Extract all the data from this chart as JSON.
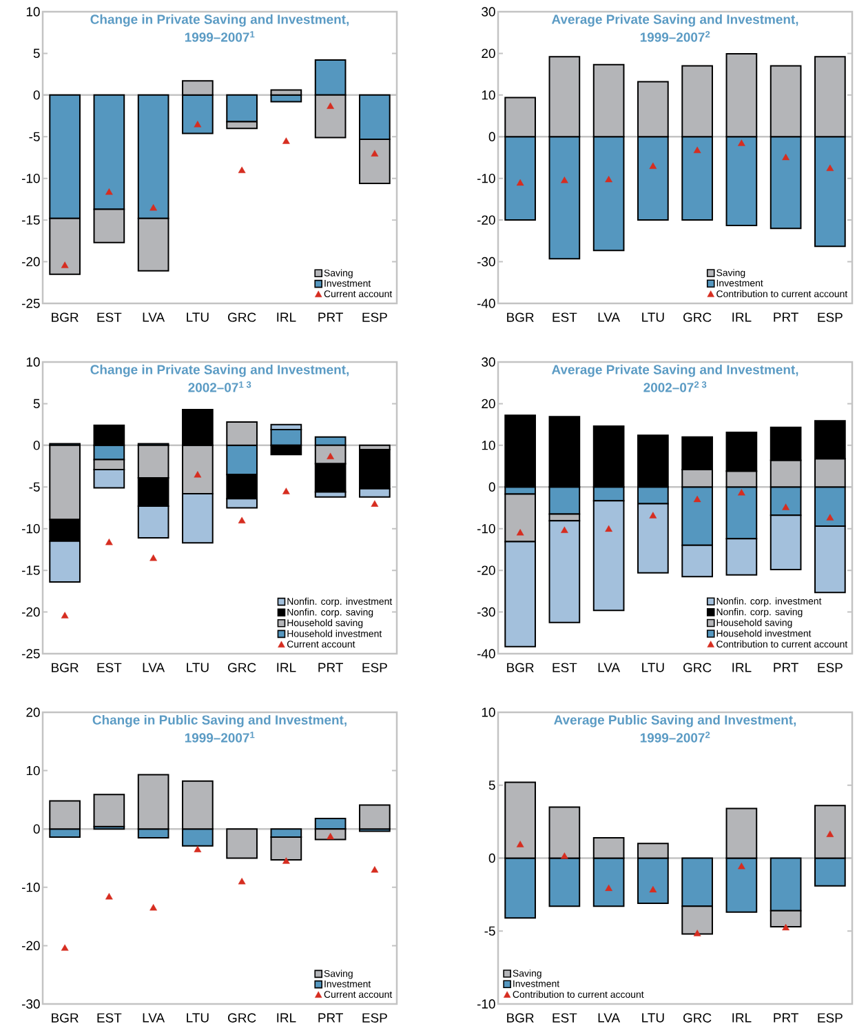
{
  "chart_data": [
    {
      "type": "bar",
      "title": "Change in Private Saving and Investment,",
      "subtitle": "1999–2007$^{1}$",
      "categories": [
        "BGR",
        "EST",
        "LVA",
        "LTU",
        "GRC",
        "IRL",
        "PRT",
        "ESP"
      ],
      "stacked": true,
      "ylim": [
        -25,
        10
      ],
      "yticks": [
        -25,
        -20,
        -15,
        -10,
        -5,
        0,
        5,
        10
      ],
      "legend": "bottom right",
      "series": [
        {
          "name": "Investment",
          "color": "#5597bf",
          "values": [
            -14.8,
            -13.7,
            -14.8,
            -4.6,
            -3.2,
            -0.8,
            4.2,
            -5.3
          ]
        },
        {
          "name": "Saving",
          "color": "#b4b5b8",
          "values": [
            -6.7,
            -4.0,
            -6.3,
            1.7,
            -0.8,
            0.6,
            -5.1,
            -5.3
          ]
        },
        {
          "name": "Current account",
          "type": "scatter",
          "marker": "triangle",
          "color": "#d62d20",
          "values": [
            -20.5,
            -11.7,
            -13.6,
            -3.6,
            -9.1,
            -5.6,
            -1.4,
            -7.1
          ]
        }
      ]
    },
    {
      "type": "bar",
      "title": "Average Private Saving and Investment,",
      "subtitle": "1999–2007$^{2}$",
      "categories": [
        "BGR",
        "EST",
        "LVA",
        "LTU",
        "GRC",
        "IRL",
        "PRT",
        "ESP"
      ],
      "stacked": true,
      "ylim": [
        -40,
        30
      ],
      "yticks": [
        -40,
        -30,
        -20,
        -10,
        0,
        10,
        20,
        30
      ],
      "legend": "bottom right",
      "series": [
        {
          "name": "Investment",
          "color": "#5597bf",
          "values": [
            -20.0,
            -29.3,
            -27.3,
            -20.0,
            -20.0,
            -21.3,
            -22.0,
            -26.3
          ]
        },
        {
          "name": "Saving",
          "color": "#b4b5b8",
          "values": [
            9.4,
            19.2,
            17.3,
            13.2,
            17.0,
            19.9,
            17.0,
            19.2
          ]
        },
        {
          "name": "Contribution to current account",
          "type": "scatter",
          "marker": "triangle",
          "color": "#d62d20",
          "values": [
            -11.2,
            -10.6,
            -10.4,
            -7.2,
            -3.4,
            -1.7,
            -5.1,
            -7.7
          ]
        }
      ]
    },
    {
      "type": "bar",
      "title": "Change in Private Saving and Investment,",
      "subtitle": "2002–07$^{1 3}$",
      "categories": [
        "BGR",
        "EST",
        "LVA",
        "LTU",
        "GRC",
        "IRL",
        "PRT",
        "ESP"
      ],
      "stacked": true,
      "ylim": [
        -25,
        10
      ],
      "yticks": [
        -25,
        -20,
        -15,
        -10,
        -5,
        0,
        5,
        10
      ],
      "legend": "bottom right",
      "series": [
        {
          "name": "Household investment",
          "color": "#5597bf",
          "values": [
            0.2,
            -1.7,
            0.2,
            0,
            -3.5,
            1.9,
            1.0,
            null
          ]
        },
        {
          "name": "Household saving",
          "color": "#b4b5b8",
          "values": [
            -8.9,
            -1.2,
            -3.9,
            -5.8,
            2.8,
            0,
            -2.2,
            -0.5
          ]
        },
        {
          "name": "Nonfin. corp. saving",
          "color": "#000000",
          "values": [
            -2.6,
            2.4,
            -3.4,
            4.3,
            -2.9,
            -1.1,
            -3.4,
            -4.7
          ]
        },
        {
          "name": "Nonfin. corp. investment",
          "color": "#a3c0dc",
          "values": [
            -4.9,
            -2.2,
            -3.8,
            -5.9,
            -1.1,
            0.6,
            -0.6,
            -1.0
          ]
        },
        {
          "name": "Current account",
          "type": "scatter",
          "marker": "triangle",
          "color": "#d62d20",
          "values": [
            -20.5,
            -11.7,
            -13.6,
            -3.6,
            -9.1,
            -5.6,
            -1.4,
            -7.1
          ]
        }
      ]
    },
    {
      "type": "bar",
      "title": "Average Private Saving and Investment,",
      "subtitle": "2002–07$^{2 3}$",
      "categories": [
        "BGR",
        "EST",
        "LVA",
        "LTU",
        "GRC",
        "IRL",
        "PRT",
        "ESP"
      ],
      "stacked": true,
      "ylim": [
        -40,
        30
      ],
      "yticks": [
        -40,
        -30,
        -20,
        -10,
        0,
        10,
        20,
        30
      ],
      "legend": "bottom right",
      "series": [
        {
          "name": "Household investment",
          "color": "#5597bf",
          "values": [
            -1.7,
            -6.5,
            -3.3,
            -4.0,
            -14.0,
            -12.4,
            -6.8,
            -9.4
          ]
        },
        {
          "name": "Household saving",
          "color": "#b4b5b8",
          "values": [
            -11.4,
            -1.6,
            0,
            0,
            4.2,
            3.8,
            6.4,
            6.8
          ]
        },
        {
          "name": "Nonfin. corp. saving",
          "color": "#000000",
          "values": [
            17.2,
            16.9,
            14.6,
            12.4,
            7.8,
            9.3,
            7.9,
            9.1
          ]
        },
        {
          "name": "Nonfin. corp. investment",
          "color": "#a3c0dc",
          "values": [
            -25.2,
            -24.4,
            -26.3,
            -16.6,
            -7.5,
            -8.7,
            -13.0,
            -15.9
          ]
        },
        {
          "name": "Contribution to current account",
          "type": "scatter",
          "marker": "triangle",
          "color": "#d62d20",
          "values": [
            -11.1,
            -10.5,
            -10.2,
            -7.0,
            -3.1,
            -1.5,
            -5.0,
            -7.5
          ]
        }
      ]
    },
    {
      "type": "bar",
      "title": "Change in Public Saving and Investment,",
      "subtitle": "1999–2007$^{1}$",
      "categories": [
        "BGR",
        "EST",
        "LVA",
        "LTU",
        "GRC",
        "IRL",
        "PRT",
        "ESP"
      ],
      "stacked": true,
      "ylim": [
        -30,
        20
      ],
      "yticks": [
        -30,
        -20,
        -10,
        0,
        10,
        20
      ],
      "legend": "bottom right",
      "series": [
        {
          "name": "Investment",
          "color": "#5597bf",
          "values": [
            -1.4,
            0.4,
            -1.5,
            -2.9,
            0,
            -1.4,
            1.8,
            -0.4
          ]
        },
        {
          "name": "Saving",
          "color": "#b4b5b8",
          "values": [
            4.8,
            5.5,
            9.3,
            8.2,
            -5.0,
            -3.9,
            -1.8,
            4.1
          ]
        },
        {
          "name": "Current account",
          "type": "scatter",
          "marker": "triangle",
          "color": "#d62d20",
          "values": [
            -20.5,
            -11.7,
            -13.6,
            -3.6,
            -9.1,
            -5.6,
            -1.4,
            -7.1
          ]
        }
      ]
    },
    {
      "type": "bar",
      "title": "Average Public Saving and Investment,",
      "subtitle": "1999–2007$^{2}$",
      "categories": [
        "BGR",
        "EST",
        "LVA",
        "LTU",
        "GRC",
        "IRL",
        "PRT",
        "ESP"
      ],
      "stacked": true,
      "ylim": [
        -10,
        10
      ],
      "yticks": [
        -10,
        -5,
        0,
        5,
        10
      ],
      "legend": "bottom left",
      "series": [
        {
          "name": "Investment",
          "color": "#5597bf",
          "values": [
            -4.1,
            -3.3,
            -3.3,
            -3.1,
            -3.3,
            -3.7,
            -3.6,
            -1.9
          ]
        },
        {
          "name": "Saving",
          "color": "#b4b5b8",
          "values": [
            5.2,
            3.5,
            1.4,
            1.0,
            -1.9,
            3.4,
            -1.1,
            3.6
          ]
        },
        {
          "name": "Contribution to current account",
          "type": "scatter",
          "marker": "triangle",
          "color": "#d62d20",
          "values": [
            0.9,
            0.1,
            -2.1,
            -2.2,
            -5.2,
            -0.6,
            -4.8,
            1.6
          ]
        }
      ]
    }
  ]
}
